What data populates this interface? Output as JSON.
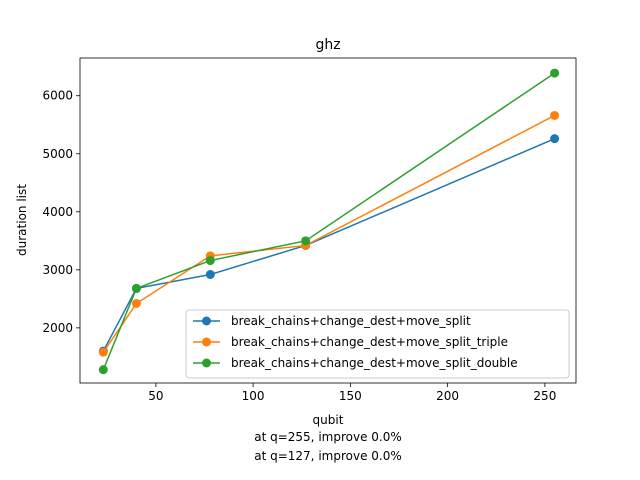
{
  "chart_data": {
    "type": "line",
    "title": "ghz",
    "xlabel": "qubit",
    "ylabel": "duration list",
    "xlim": [
      11,
      266
    ],
    "ylim": [
      1050,
      6650
    ],
    "x_ticks": [
      50,
      100,
      150,
      200,
      250
    ],
    "y_ticks": [
      2000,
      3000,
      4000,
      5000,
      6000
    ],
    "legend_position": "lower-right",
    "grid": false,
    "series": [
      {
        "name": "break_chains+change_dest+move_split",
        "color": "#1f77b4",
        "x": [
          23,
          40,
          78,
          127,
          255
        ],
        "y": [
          1600,
          2680,
          2920,
          3420,
          5260
        ]
      },
      {
        "name": "break_chains+change_dest+move_split_triple",
        "color": "#ff7f0e",
        "x": [
          23,
          40,
          78,
          127,
          255
        ],
        "y": [
          1580,
          2420,
          3240,
          3420,
          5660
        ]
      },
      {
        "name": "break_chains+change_dest+move_split_double",
        "color": "#2ca02c",
        "x": [
          23,
          40,
          78,
          127,
          255
        ],
        "y": [
          1280,
          2680,
          3160,
          3500,
          6390
        ]
      }
    ]
  },
  "notes": [
    "at q=255, improve 0.0%",
    "at q=127, improve 0.0%"
  ]
}
